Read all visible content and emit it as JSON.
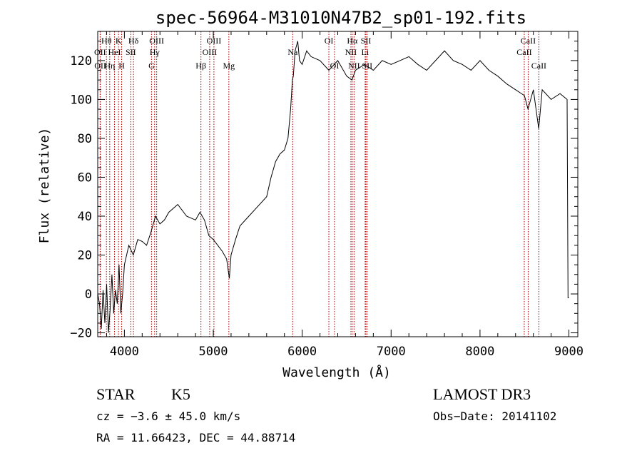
{
  "chart_data": {
    "type": "line",
    "title": "spec-56964-M31010N47B2_sp01-192.fits",
    "xlabel": "Wavelength (Å)",
    "ylabel": "Flux (relative)",
    "xlim": [
      3700,
      9100
    ],
    "ylim": [
      -22,
      135
    ],
    "x_ticks": [
      4000,
      5000,
      6000,
      7000,
      8000,
      9000
    ],
    "x_tick_labels": [
      "4000",
      "5000",
      "6000",
      "7000",
      "8000",
      "9000"
    ],
    "y_ticks": [
      -20,
      0,
      20,
      40,
      60,
      80,
      100,
      120
    ],
    "y_tick_labels": [
      "−20",
      "0",
      "20",
      "40",
      "60",
      "80",
      "100",
      "120"
    ],
    "series": [
      {
        "name": "flux",
        "color": "#000000",
        "x": [
          3700,
          3720,
          3740,
          3760,
          3780,
          3800,
          3820,
          3840,
          3860,
          3880,
          3900,
          3920,
          3940,
          3960,
          3980,
          4000,
          4050,
          4100,
          4150,
          4200,
          4250,
          4300,
          4350,
          4400,
          4450,
          4500,
          4600,
          4700,
          4800,
          4850,
          4900,
          4950,
          5000,
          5050,
          5100,
          5150,
          5180,
          5200,
          5250,
          5300,
          5400,
          5500,
          5600,
          5650,
          5700,
          5750,
          5800,
          5840,
          5870,
          5890,
          5900,
          5920,
          5950,
          5970,
          6000,
          6050,
          6100,
          6200,
          6300,
          6400,
          6500,
          6560,
          6600,
          6700,
          6800,
          6900,
          7000,
          7100,
          7200,
          7300,
          7400,
          7500,
          7600,
          7700,
          7800,
          7900,
          8000,
          8100,
          8200,
          8300,
          8400,
          8500,
          8540,
          8600,
          8660,
          8700,
          8800,
          8900,
          8980,
          8990,
          9000
        ],
        "values": [
          0,
          -5,
          -18,
          2,
          -15,
          5,
          -20,
          -8,
          10,
          -10,
          2,
          -5,
          15,
          -10,
          0,
          15,
          25,
          20,
          28,
          27,
          25,
          32,
          40,
          36,
          38,
          42,
          46,
          40,
          38,
          42,
          38,
          30,
          28,
          25,
          22,
          18,
          8,
          20,
          28,
          35,
          40,
          45,
          50,
          60,
          68,
          72,
          74,
          80,
          95,
          110,
          112,
          125,
          130,
          120,
          118,
          125,
          122,
          120,
          115,
          120,
          112,
          110,
          115,
          118,
          115,
          120,
          118,
          120,
          122,
          118,
          115,
          120,
          125,
          120,
          118,
          115,
          120,
          115,
          112,
          108,
          105,
          102,
          95,
          105,
          85,
          105,
          100,
          103,
          100,
          -2,
          -2
        ]
      }
    ],
    "lines": [
      {
        "name": "Hθ",
        "wl": 3798,
        "label_row": 1
      },
      {
        "name": "OII",
        "wl": 3727,
        "label_row": 2
      },
      {
        "name": "OII",
        "wl": 3729,
        "label_row": 3
      },
      {
        "name": "Hη",
        "wl": 3835,
        "label_row": 3
      },
      {
        "name": "K",
        "wl": 3934,
        "label_row": 1
      },
      {
        "name": "HeI",
        "wl": 3889,
        "label_row": 2
      },
      {
        "name": "H",
        "wl": 3969,
        "label_row": 3
      },
      {
        "name": "SII",
        "wl": 4072,
        "label_row": 2
      },
      {
        "name": "Hδ",
        "wl": 4102,
        "label_row": 1
      },
      {
        "name": "OIII",
        "wl": 4363,
        "label_row": 1
      },
      {
        "name": "Hγ",
        "wl": 4340,
        "label_row": 2
      },
      {
        "name": "G",
        "wl": 4305,
        "label_row": 3
      },
      {
        "name": "Hβ",
        "wl": 4861,
        "label_row": 3
      },
      {
        "name": "OIII",
        "wl": 4959,
        "label_row": 2
      },
      {
        "name": "OIII",
        "wl": 5007,
        "label_row": 1
      },
      {
        "name": "Mg",
        "wl": 5175,
        "label_row": 3
      },
      {
        "name": "Na",
        "wl": 5893,
        "label_row": 2
      },
      {
        "name": "OI",
        "wl": 6300,
        "label_row": 1
      },
      {
        "name": "OI",
        "wl": 6364,
        "label_row": 3
      },
      {
        "name": "Hα",
        "wl": 6563,
        "label_row": 1
      },
      {
        "name": "NII",
        "wl": 6548,
        "label_row": 2
      },
      {
        "name": "NII",
        "wl": 6583,
        "label_row": 3
      },
      {
        "name": "SII",
        "wl": 6717,
        "label_row": 1
      },
      {
        "name": "Li",
        "wl": 6708,
        "label_row": 2
      },
      {
        "name": "SII",
        "wl": 6731,
        "label_row": 3
      },
      {
        "name": "CaII",
        "wl": 8542,
        "label_row": 1
      },
      {
        "name": "CaII",
        "wl": 8498,
        "label_row": 2
      },
      {
        "name": "CaII",
        "wl": 8662,
        "label_row": 3
      }
    ],
    "line_color": "#b00000"
  },
  "footer": {
    "object_class": "STAR",
    "subclass": "K5",
    "survey": "LAMOST DR3",
    "cz": "cz = −3.6 ± 45.0 km/s",
    "obs_date": "Obs−Date: 20141102",
    "coords": "RA =  11.66423, DEC =  44.88714"
  }
}
